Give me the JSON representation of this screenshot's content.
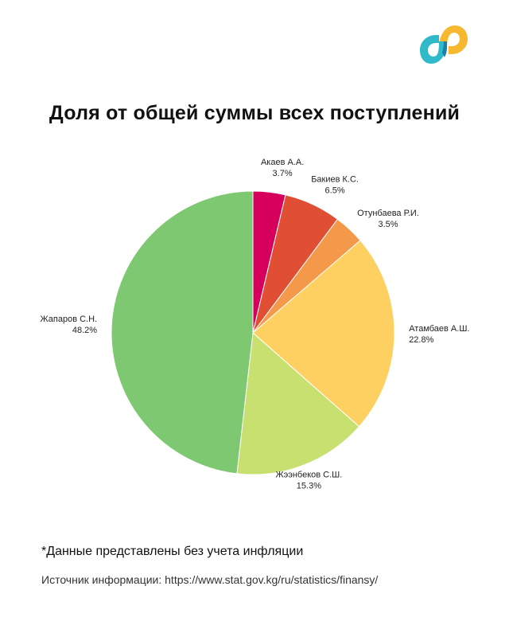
{
  "logo": {
    "icon": "brand-logo-icon",
    "colors": [
      "#f5b82e",
      "#2fb9c9",
      "#1e7fa8"
    ]
  },
  "chart_data": {
    "type": "pie",
    "title": "Доля от общей суммы всех поступлений",
    "start_angle_deg": 0,
    "direction": "clockwise",
    "slices": [
      {
        "name": "Акаев А.А.",
        "value": 3.7,
        "label": "3.7%",
        "color": "#d6005c"
      },
      {
        "name": "Бакиев К.С.",
        "value": 6.5,
        "label": "6.5%",
        "color": "#e04e33"
      },
      {
        "name": "Отунбаева Р.И.",
        "value": 3.5,
        "label": "3.5%",
        "color": "#f4994a"
      },
      {
        "name": "Атамбаев А.Ш.",
        "value": 22.8,
        "label": "22.8%",
        "color": "#fed061"
      },
      {
        "name": "Жээнбеков С.Ш.",
        "value": 15.3,
        "label": "15.3%",
        "color": "#c8e070"
      },
      {
        "name": "Жапаров С.Н.",
        "value": 48.2,
        "label": "48.2%",
        "color": "#7dc870"
      }
    ]
  },
  "footnote": "*Данные представлены без учета инфляции",
  "source": "Источник информации: https://www.stat.gov.kg/ru/statistics/finansy/"
}
